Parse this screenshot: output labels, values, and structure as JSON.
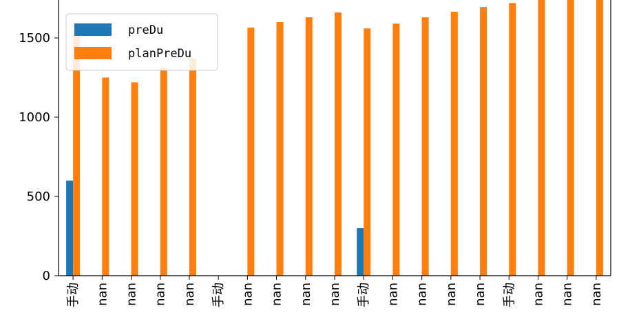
{
  "chart_data": {
    "type": "bar",
    "categories": [
      "手动",
      "nan",
      "nan",
      "nan",
      "nan",
      "手动",
      "nan",
      "nan",
      "nan",
      "nan",
      "手动",
      "nan",
      "nan",
      "nan",
      "nan",
      "手动",
      "nan",
      "nan",
      "nan"
    ],
    "series": [
      {
        "name": "preDu",
        "color": "#1f77b4",
        "values": [
          600,
          null,
          null,
          null,
          null,
          null,
          null,
          null,
          null,
          null,
          300,
          null,
          null,
          null,
          null,
          null,
          null,
          null,
          null
        ]
      },
      {
        "name": "planPreDu",
        "color": "#ff7f0e",
        "values": [
          1550,
          1250,
          1220,
          1310,
          1370,
          null,
          1565,
          1600,
          1630,
          1660,
          1560,
          1590,
          1630,
          1665,
          1695,
          1720,
          1760,
          1780,
          1800
        ]
      }
    ],
    "ylim": [
      0,
      1800
    ],
    "yticks": [
      0,
      500,
      1000,
      1500
    ],
    "title": "",
    "xlabel": "",
    "ylabel": "",
    "legend_position": "top-left",
    "grid": false
  }
}
